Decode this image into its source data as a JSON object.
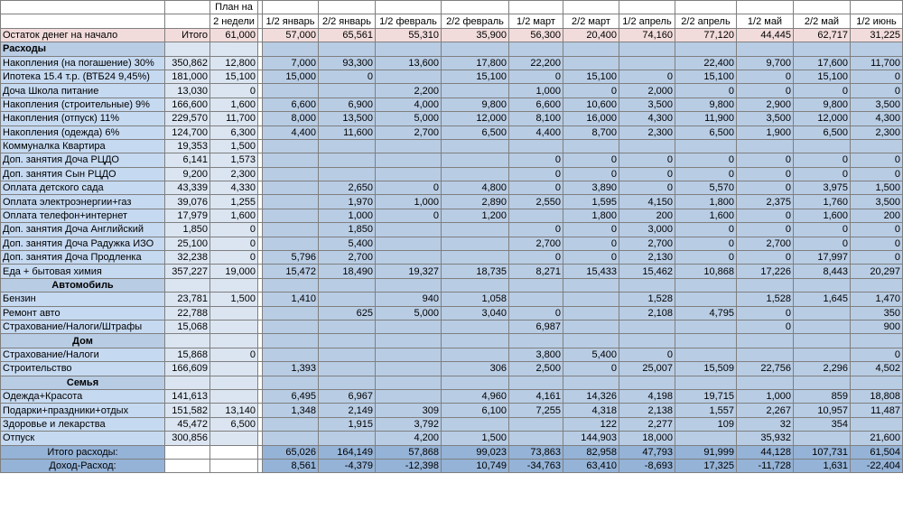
{
  "sheet": {
    "header": {
      "plan_top": "План на",
      "plan_bottom": "2 недели",
      "periods": [
        "1/2 январь",
        "2/2 январь",
        "1/2 февраль",
        "2/2 февраль",
        "1/2 март",
        "2/2 март",
        "1/2 апрель",
        "2/2 апрель",
        "1/2 май",
        "2/2 май",
        "1/2 июнь"
      ]
    },
    "rows": [
      {
        "kind": "start",
        "label": "Остаток денег на начало",
        "total": "Итого",
        "plan": "61,000",
        "values": [
          "57,000",
          "65,561",
          "55,310",
          "35,900",
          "56,300",
          "20,400",
          "74,160",
          "77,120",
          "44,445",
          "62,717",
          "31,225"
        ]
      },
      {
        "kind": "section",
        "label": "Расходы",
        "align": "left",
        "total": "",
        "plan": "",
        "values": [
          "",
          "",
          "",
          "",
          "",
          "",
          "",
          "",
          "",
          "",
          ""
        ]
      },
      {
        "kind": "data",
        "label": "Накопления (на погашение) 30%",
        "total": "350,862",
        "plan": "12,800",
        "values": [
          "7,000",
          "93,300",
          "13,600",
          "17,800",
          "22,200",
          "",
          "",
          "22,400",
          "9,700",
          "17,600",
          "11,700"
        ]
      },
      {
        "kind": "data",
        "label": "Ипотека 15.4 т.р. (ВТБ24 9,45%)",
        "total": "181,000",
        "plan": "15,100",
        "values": [
          "15,000",
          "0",
          "",
          "15,100",
          "0",
          "15,100",
          "0",
          "15,100",
          "0",
          "15,100",
          "0"
        ]
      },
      {
        "kind": "data",
        "label": "Доча Школа питание",
        "total": "13,030",
        "plan": "0",
        "values": [
          "",
          "",
          "2,200",
          "",
          "1,000",
          "0",
          "2,000",
          "0",
          "0",
          "0",
          "0"
        ]
      },
      {
        "kind": "data",
        "label": "Накопления (строительные) 9%",
        "total": "166,600",
        "plan": "1,600",
        "values": [
          "6,600",
          "6,900",
          "4,000",
          "9,800",
          "6,600",
          "10,600",
          "3,500",
          "9,800",
          "2,900",
          "9,800",
          "3,500"
        ]
      },
      {
        "kind": "data",
        "label": "Накопления (отпуск) 11%",
        "total": "229,570",
        "plan": "11,700",
        "values": [
          "8,000",
          "13,500",
          "5,000",
          "12,000",
          "8,100",
          "16,000",
          "4,300",
          "11,900",
          "3,500",
          "12,000",
          "4,300"
        ]
      },
      {
        "kind": "data",
        "label": "Накопления (одежда) 6%",
        "total": "124,700",
        "plan": "6,300",
        "values": [
          "4,400",
          "11,600",
          "2,700",
          "6,500",
          "4,400",
          "8,700",
          "2,300",
          "6,500",
          "1,900",
          "6,500",
          "2,300"
        ]
      },
      {
        "kind": "data",
        "label": "Коммуналка Квартира",
        "total": "19,353",
        "plan": "1,500",
        "values": [
          "",
          "",
          "",
          "",
          "",
          "",
          "",
          "",
          "",
          "",
          ""
        ]
      },
      {
        "kind": "data",
        "label": "Доп. занятия Доча РЦДО",
        "total": "6,141",
        "plan": "1,573",
        "values": [
          "",
          "",
          "",
          "",
          "0",
          "0",
          "0",
          "0",
          "0",
          "0",
          "0"
        ]
      },
      {
        "kind": "data",
        "label": "Доп. занятия Сын РЦДО",
        "total": "9,200",
        "plan": "2,300",
        "values": [
          "",
          "",
          "",
          "",
          "0",
          "0",
          "0",
          "0",
          "0",
          "0",
          "0"
        ]
      },
      {
        "kind": "data",
        "label": "Оплата детского сада",
        "total": "43,339",
        "plan": "4,330",
        "values": [
          "",
          "2,650",
          "0",
          "4,800",
          "0",
          "3,890",
          "0",
          "5,570",
          "0",
          "3,975",
          "1,500"
        ]
      },
      {
        "kind": "data",
        "label": "Оплата электроэнергии+газ",
        "total": "39,076",
        "plan": "1,255",
        "values": [
          "",
          "1,970",
          "1,000",
          "2,890",
          "2,550",
          "1,595",
          "4,150",
          "1,800",
          "2,375",
          "1,760",
          "3,500"
        ]
      },
      {
        "kind": "data",
        "label": "Оплата телефон+интернет",
        "total": "17,979",
        "plan": "1,600",
        "values": [
          "",
          "1,000",
          "0",
          "1,200",
          "",
          "1,800",
          "200",
          "1,600",
          "0",
          "1,600",
          "200"
        ]
      },
      {
        "kind": "data",
        "label": "Доп. занятия Доча Английский",
        "total": "1,850",
        "plan": "0",
        "values": [
          "",
          "1,850",
          "",
          "",
          "0",
          "0",
          "3,000",
          "0",
          "0",
          "0",
          "0"
        ]
      },
      {
        "kind": "data",
        "label": "Доп. занятия Доча  Радужка ИЗО",
        "total": "25,100",
        "plan": "0",
        "values": [
          "",
          "5,400",
          "",
          "",
          "2,700",
          "0",
          "2,700",
          "0",
          "2,700",
          "0",
          "0"
        ]
      },
      {
        "kind": "data",
        "label": "Доп. занятия Доча Продленка",
        "total": "32,238",
        "plan": "0",
        "values": [
          "5,796",
          "2,700",
          "",
          "",
          "0",
          "0",
          "2,130",
          "0",
          "0",
          "17,997",
          "0"
        ]
      },
      {
        "kind": "data",
        "label": "Еда + бытовая химия",
        "total": "357,227",
        "plan": "19,000",
        "values": [
          "15,472",
          "18,490",
          "19,327",
          "18,735",
          "8,271",
          "15,433",
          "15,462",
          "10,868",
          "17,226",
          "8,443",
          "20,297"
        ]
      },
      {
        "kind": "section",
        "label": "Автомобиль",
        "align": "center",
        "total": "",
        "plan": "",
        "values": [
          "",
          "",
          "",
          "",
          "",
          "",
          "",
          "",
          "",
          "",
          ""
        ]
      },
      {
        "kind": "data",
        "label": "Бензин",
        "total": "23,781",
        "plan": "1,500",
        "values": [
          "1,410",
          "",
          "940",
          "1,058",
          "",
          "",
          "1,528",
          "",
          "1,528",
          "1,645",
          "1,470"
        ]
      },
      {
        "kind": "data",
        "label": "Ремонт авто",
        "total": "22,788",
        "plan": "",
        "values": [
          "",
          "625",
          "5,000",
          "3,040",
          "0",
          "",
          "2,108",
          "4,795",
          "0",
          "",
          "350"
        ]
      },
      {
        "kind": "data",
        "label": "Страхование/Налоги/Штрафы",
        "total": "15,068",
        "plan": "",
        "values": [
          "",
          "",
          "",
          "",
          "6,987",
          "",
          "",
          "",
          "0",
          "",
          "900"
        ]
      },
      {
        "kind": "section",
        "label": "Дом",
        "align": "center",
        "total": "",
        "plan": "",
        "values": [
          "",
          "",
          "",
          "",
          "",
          "",
          "",
          "",
          "",
          "",
          ""
        ]
      },
      {
        "kind": "data",
        "label": "Страхование/Налоги",
        "total": "15,868",
        "plan": "0",
        "values": [
          "",
          "",
          "",
          "",
          "3,800",
          "5,400",
          "0",
          "",
          "",
          "",
          "0"
        ]
      },
      {
        "kind": "data",
        "label": "Строительство",
        "total": "166,609",
        "plan": "",
        "values": [
          "1,393",
          "",
          "",
          "306",
          "2,500",
          "0",
          "25,007",
          "15,509",
          "22,756",
          "2,296",
          "4,502"
        ]
      },
      {
        "kind": "section",
        "label": "Семья",
        "align": "center",
        "total": "",
        "plan": "",
        "values": [
          "",
          "",
          "",
          "",
          "",
          "",
          "",
          "",
          "",
          "",
          ""
        ]
      },
      {
        "kind": "data",
        "label": "Одежда+Красота",
        "total": "141,613",
        "plan": "",
        "values": [
          "6,495",
          "6,967",
          "",
          "4,960",
          "4,161",
          "14,326",
          "4,198",
          "19,715",
          "1,000",
          "859",
          "18,808"
        ]
      },
      {
        "kind": "data",
        "label": "Подарки+праздники+отдых",
        "total": "151,582",
        "plan": "13,140",
        "values": [
          "1,348",
          "2,149",
          "309",
          "6,100",
          "7,255",
          "4,318",
          "2,138",
          "1,557",
          "2,267",
          "10,957",
          "11,487"
        ]
      },
      {
        "kind": "data",
        "label": "Здоровье и лекарства",
        "total": "45,472",
        "plan": "6,500",
        "values": [
          "",
          "1,915",
          "3,792",
          "",
          "",
          "122",
          "2,277",
          "109",
          "32",
          "354",
          ""
        ]
      },
      {
        "kind": "data",
        "label": "Отпуск",
        "total": "300,856",
        "plan": "",
        "values": [
          "",
          "",
          "4,200",
          "1,500",
          "",
          "144,903",
          "18,000",
          "",
          "35,932",
          "",
          "21,600"
        ]
      },
      {
        "kind": "bottom",
        "label": "Итого расходы:",
        "align": "center",
        "total": "",
        "plan": "",
        "values": [
          "65,026",
          "164,149",
          "57,868",
          "99,023",
          "73,863",
          "82,958",
          "47,793",
          "91,999",
          "44,128",
          "107,731",
          "61,504"
        ]
      },
      {
        "kind": "bottom",
        "label": "Доход-Расход:",
        "align": "center",
        "total": "",
        "plan": "",
        "values": [
          "8,561",
          "-4,379",
          "-12,398",
          "10,749",
          "-34,763",
          "63,410",
          "-8,693",
          "17,325",
          "-11,728",
          "1,631",
          "-22,404"
        ]
      }
    ]
  }
}
